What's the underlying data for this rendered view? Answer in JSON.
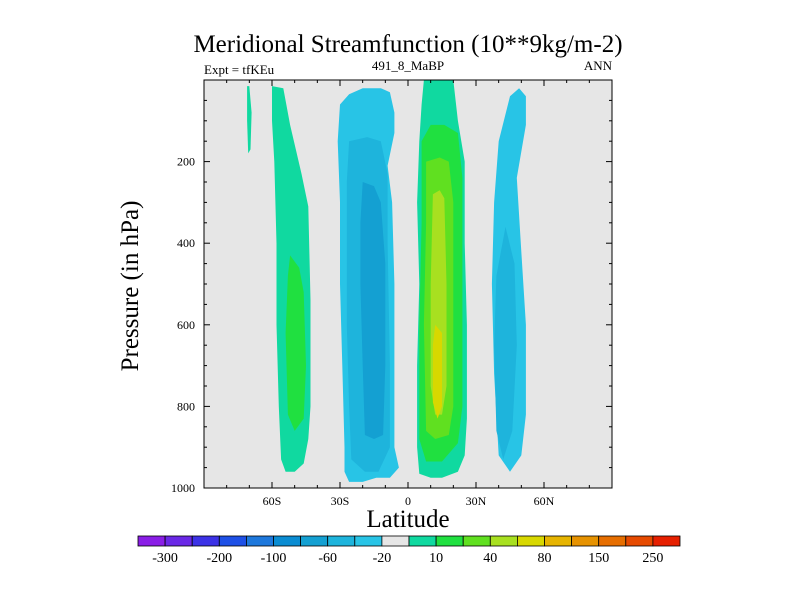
{
  "chart_data": {
    "type": "contour",
    "title": "Meridional Streamfunction (10**9kg/m-2)",
    "left_string": "Expt = tfKEu",
    "center_string": "491_8_MaBP",
    "right_string": "ANN",
    "xlabel": "Latitude",
    "ylabel": "Pressure (in hPa)",
    "xlim": [
      -90,
      90
    ],
    "ylim": [
      1000,
      0
    ],
    "y_reversed": true,
    "x_ticks": [
      {
        "value": -60,
        "label": "60S"
      },
      {
        "value": -30,
        "label": "30S"
      },
      {
        "value": 0,
        "label": "0"
      },
      {
        "value": 30,
        "label": "30N"
      },
      {
        "value": 60,
        "label": "60N"
      }
    ],
    "y_ticks": [
      {
        "value": 200,
        "label": "200"
      },
      {
        "value": 400,
        "label": "400"
      },
      {
        "value": 600,
        "label": "600"
      },
      {
        "value": 800,
        "label": "800"
      },
      {
        "value": 1000,
        "label": "1000"
      }
    ],
    "background_fill": "#e6e6e6",
    "colorbar": {
      "labels": [
        "-300",
        "-200",
        "-100",
        "-60",
        "-20",
        "10",
        "40",
        "80",
        "150",
        "250"
      ],
      "colors": [
        "#8a1ee6",
        "#6a28e6",
        "#3c32e6",
        "#1e50e6",
        "#1e78dc",
        "#0a8cd2",
        "#14a0d2",
        "#1eb4dc",
        "#28c4e6",
        "#e6e6e6",
        "#10d9a0",
        "#20e040",
        "#60e020",
        "#a8e020",
        "#d8d800",
        "#e6b400",
        "#e69200",
        "#e66e00",
        "#e64a00",
        "#e62000"
      ]
    },
    "regions": [
      {
        "name": "nh-high-lat-cell-outer",
        "fill": "#28c4e6",
        "polygon": [
          [
            49,
            20
          ],
          [
            52,
            40
          ],
          [
            52,
            110
          ],
          [
            48,
            240
          ],
          [
            50,
            420
          ],
          [
            52,
            600
          ],
          [
            52,
            820
          ],
          [
            50,
            920
          ],
          [
            45,
            960
          ],
          [
            40,
            920
          ],
          [
            38,
            720
          ],
          [
            37,
            500
          ],
          [
            38,
            300
          ],
          [
            40,
            150
          ],
          [
            45,
            40
          ]
        ]
      },
      {
        "name": "nh-high-lat-cell-inner",
        "fill": "#1eb4dc",
        "polygon": [
          [
            43,
            360
          ],
          [
            47,
            450
          ],
          [
            48,
            650
          ],
          [
            46,
            860
          ],
          [
            42,
            930
          ],
          [
            39,
            860
          ],
          [
            38,
            650
          ],
          [
            39,
            480
          ]
        ]
      },
      {
        "name": "sh-ferrel-cell-outer",
        "fill": "#10d9a0",
        "polygon": [
          [
            -60,
            15
          ],
          [
            -55,
            20
          ],
          [
            -52,
            110
          ],
          [
            -47,
            230
          ],
          [
            -44,
            310
          ],
          [
            -43,
            540
          ],
          [
            -43,
            800
          ],
          [
            -44,
            880
          ],
          [
            -46,
            940
          ],
          [
            -50,
            960
          ],
          [
            -54,
            960
          ],
          [
            -56,
            930
          ],
          [
            -57,
            800
          ],
          [
            -58,
            600
          ],
          [
            -58,
            400
          ],
          [
            -59,
            200
          ],
          [
            -60,
            100
          ]
        ]
      },
      {
        "name": "sh-ferrel-cell-inner",
        "fill": "#20e040",
        "polygon": [
          [
            -52,
            430
          ],
          [
            -48,
            460
          ],
          [
            -46,
            520
          ],
          [
            -45,
            700
          ],
          [
            -46,
            830
          ],
          [
            -50,
            860
          ],
          [
            -53,
            820
          ],
          [
            -54,
            620
          ],
          [
            -53,
            480
          ]
        ]
      },
      {
        "name": "sh-polar-sliver",
        "fill": "#10d9a0",
        "polygon": [
          [
            -71,
            15
          ],
          [
            -70,
            15
          ],
          [
            -69,
            80
          ],
          [
            -69.5,
            170
          ],
          [
            -70.5,
            180
          ],
          [
            -71,
            100
          ]
        ]
      },
      {
        "name": "sh-hadley-cell-lev1",
        "fill": "#28c4e6",
        "polygon": [
          [
            -30,
            60
          ],
          [
            -26,
            35
          ],
          [
            -20,
            20
          ],
          [
            -12,
            20
          ],
          [
            -8,
            30
          ],
          [
            -6,
            80
          ],
          [
            -6,
            130
          ],
          [
            -9,
            210
          ],
          [
            -7,
            300
          ],
          [
            -6,
            500
          ],
          [
            -6,
            700
          ],
          [
            -6,
            900
          ],
          [
            -4,
            950
          ],
          [
            -8,
            975
          ],
          [
            -14,
            975
          ],
          [
            -20,
            985
          ],
          [
            -26,
            985
          ],
          [
            -28,
            960
          ],
          [
            -28,
            900
          ],
          [
            -29,
            700
          ],
          [
            -30,
            500
          ],
          [
            -30,
            300
          ],
          [
            -31,
            150
          ]
        ]
      },
      {
        "name": "sh-hadley-cell-lev2",
        "fill": "#1eb4dc",
        "polygon": [
          [
            -26,
            150
          ],
          [
            -18,
            140
          ],
          [
            -12,
            150
          ],
          [
            -9,
            230
          ],
          [
            -9,
            400
          ],
          [
            -8,
            700
          ],
          [
            -8,
            900
          ],
          [
            -13,
            960
          ],
          [
            -19,
            960
          ],
          [
            -25,
            930
          ],
          [
            -26,
            800
          ],
          [
            -27,
            600
          ],
          [
            -27,
            400
          ],
          [
            -27,
            250
          ]
        ]
      },
      {
        "name": "sh-hadley-cell-lev3",
        "fill": "#14a0d2",
        "polygon": [
          [
            -20,
            250
          ],
          [
            -15,
            260
          ],
          [
            -12,
            300
          ],
          [
            -10,
            450
          ],
          [
            -10,
            700
          ],
          [
            -11,
            870
          ],
          [
            -15,
            880
          ],
          [
            -19,
            870
          ],
          [
            -20,
            700
          ],
          [
            -21,
            500
          ],
          [
            -21,
            350
          ]
        ]
      },
      {
        "name": "nh-hadley-cell-lev1",
        "fill": "#10d9a0",
        "polygon": [
          [
            7,
            0
          ],
          [
            20,
            0
          ],
          [
            22,
            100
          ],
          [
            25,
            200
          ],
          [
            25,
            400
          ],
          [
            26,
            600
          ],
          [
            26,
            830
          ],
          [
            25,
            920
          ],
          [
            22,
            960
          ],
          [
            15,
            975
          ],
          [
            10,
            975
          ],
          [
            5,
            965
          ],
          [
            4,
            900
          ],
          [
            4,
            700
          ],
          [
            5,
            500
          ],
          [
            4,
            300
          ],
          [
            5,
            150
          ],
          [
            6,
            60
          ]
        ]
      },
      {
        "name": "nh-hadley-cell-lev2",
        "fill": "#20e040",
        "polygon": [
          [
            6,
            150
          ],
          [
            10,
            110
          ],
          [
            16,
            110
          ],
          [
            22,
            130
          ],
          [
            24,
            240
          ],
          [
            24,
            500
          ],
          [
            24,
            800
          ],
          [
            22,
            890
          ],
          [
            15,
            935
          ],
          [
            8,
            935
          ],
          [
            5,
            880
          ],
          [
            5,
            600
          ],
          [
            6,
            350
          ]
        ]
      },
      {
        "name": "nh-hadley-cell-lev3",
        "fill": "#60e020",
        "polygon": [
          [
            8,
            200
          ],
          [
            14,
            190
          ],
          [
            18,
            200
          ],
          [
            20,
            300
          ],
          [
            20,
            600
          ],
          [
            20,
            800
          ],
          [
            18,
            870
          ],
          [
            12,
            880
          ],
          [
            8,
            860
          ],
          [
            7,
            600
          ],
          [
            8,
            350
          ]
        ]
      },
      {
        "name": "nh-hadley-cell-lev4",
        "fill": "#a8e020",
        "polygon": [
          [
            11,
            280
          ],
          [
            14,
            270
          ],
          [
            16,
            290
          ],
          [
            17,
            500
          ],
          [
            17,
            750
          ],
          [
            15,
            820
          ],
          [
            12,
            820
          ],
          [
            10,
            750
          ],
          [
            10,
            500
          ]
        ]
      },
      {
        "name": "nh-hadley-cell-lev5",
        "fill": "#d8d800",
        "polygon": [
          [
            12,
            600
          ],
          [
            15,
            620
          ],
          [
            15,
            800
          ],
          [
            13,
            830
          ],
          [
            11,
            790
          ],
          [
            11,
            650
          ]
        ]
      }
    ]
  }
}
